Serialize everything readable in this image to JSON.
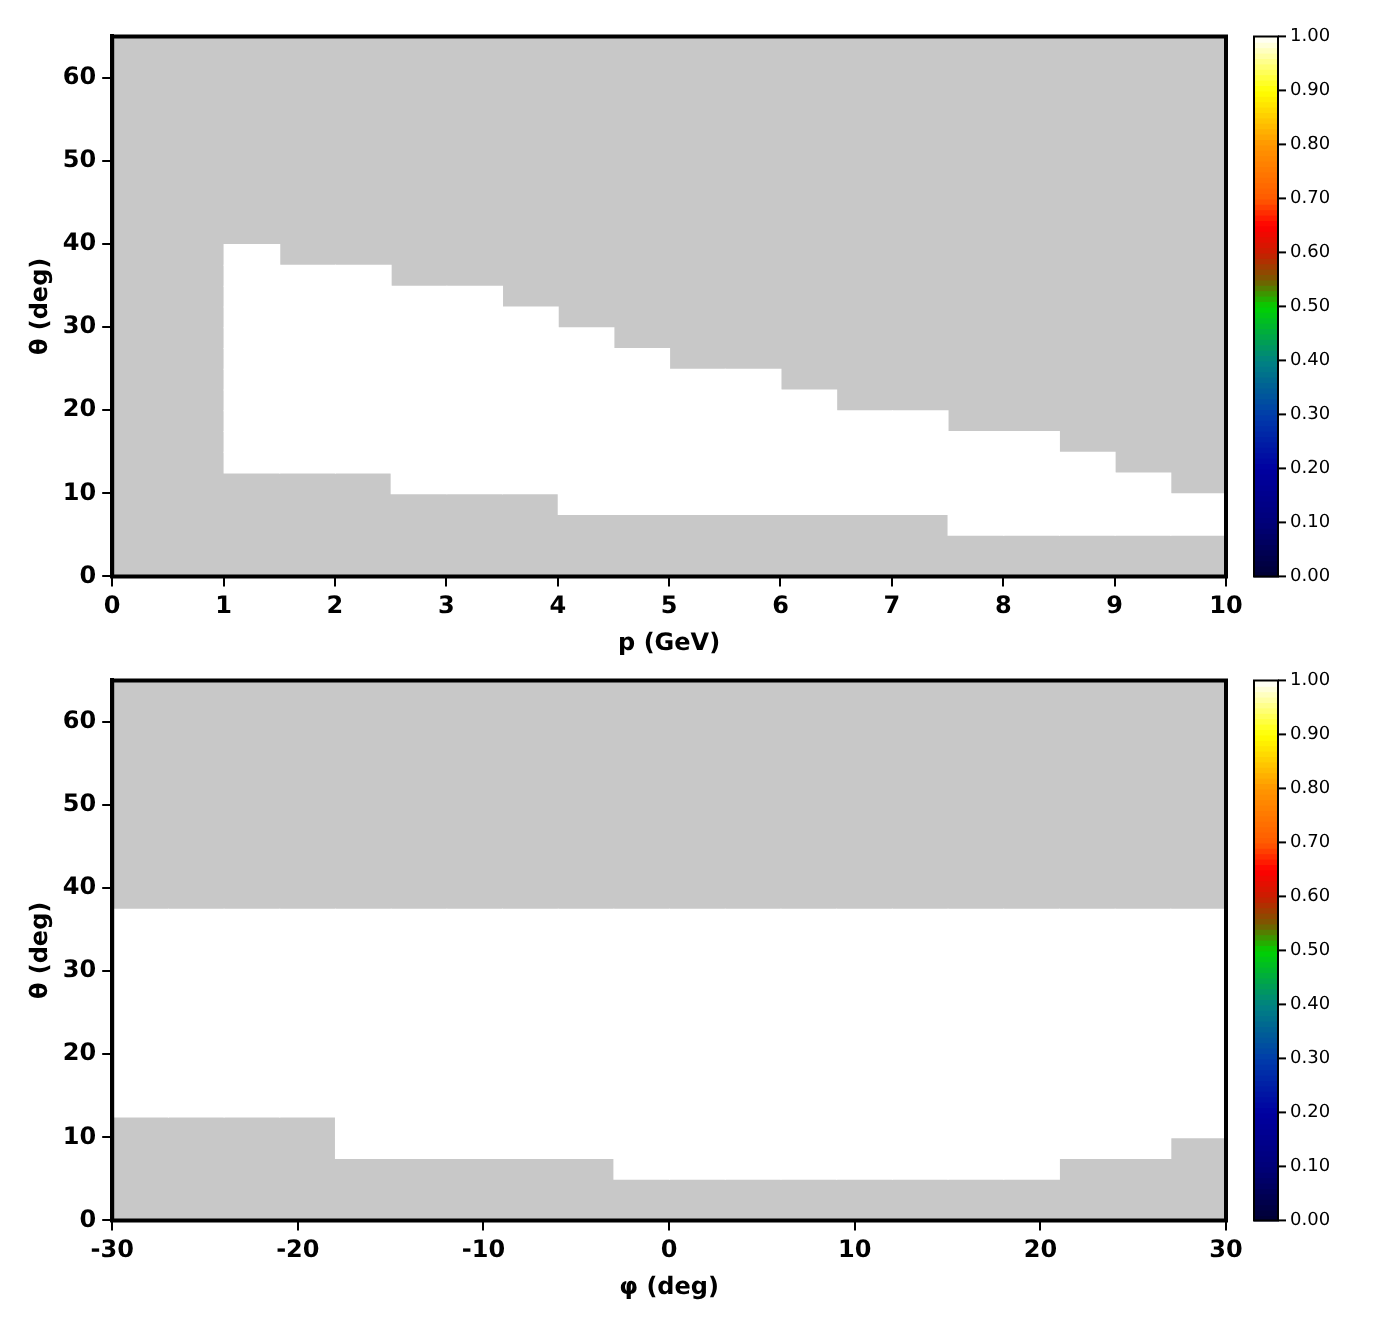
{
  "chart_data": [
    {
      "type": "scatter",
      "marker": "square",
      "xlabel": "p (GeV)",
      "ylabel": "θ (deg)",
      "xlim": [
        0,
        10
      ],
      "ylim": [
        0,
        65
      ],
      "xticks": [
        0,
        1,
        2,
        3,
        4,
        5,
        6,
        7,
        8,
        9,
        10
      ],
      "yticks": [
        0,
        10,
        20,
        30,
        40,
        50,
        60
      ],
      "clim": [
        0,
        1
      ],
      "cticks": [
        {
          "value": 0,
          "label": "0.00"
        },
        {
          "value": 0.1,
          "label": "0.10"
        },
        {
          "value": 0.2,
          "label": "0.20"
        },
        {
          "value": 0.3,
          "label": "0.30"
        },
        {
          "value": 0.4,
          "label": "0.40"
        },
        {
          "value": 0.5,
          "label": "0.50"
        },
        {
          "value": 0.6,
          "label": "0.60"
        },
        {
          "value": 0.7,
          "label": "0.70"
        },
        {
          "value": 0.8,
          "label": "0.80"
        },
        {
          "value": 0.9,
          "label": "0.90"
        },
        {
          "value": 1,
          "label": "1.00"
        }
      ],
      "x": [
        1.25,
        1.25,
        1.75,
        2.25,
        1.25,
        1.75,
        2.25,
        2.75,
        3.25,
        1.25,
        1.75,
        2.25,
        2.75,
        3.25,
        3.75,
        1.25,
        1.75,
        2.25,
        2.75,
        3.25,
        3.75,
        4.25,
        1.25,
        1.75,
        2.25,
        2.75,
        3.25,
        3.75,
        4.25,
        4.75,
        1.25,
        1.75,
        2.25,
        2.75,
        3.25,
        3.75,
        4.25,
        4.75,
        5.25,
        5.75,
        1.25,
        1.75,
        2.25,
        2.75,
        3.25,
        3.75,
        4.25,
        4.75,
        5.25,
        5.75,
        6.25,
        1.25,
        1.75,
        2.25,
        2.75,
        3.25,
        3.75,
        4.25,
        4.75,
        5.25,
        5.75,
        6.25,
        6.75,
        7.25,
        1.25,
        1.75,
        2.25,
        2.75,
        3.25,
        3.75,
        4.25,
        4.75,
        5.25,
        5.75,
        6.25,
        6.75,
        7.25,
        7.75,
        8.25,
        1.25,
        1.75,
        2.25,
        2.75,
        3.25,
        3.75,
        4.25,
        4.75,
        5.25,
        5.75,
        6.25,
        6.75,
        7.25,
        7.75,
        8.25,
        8.75,
        2.75,
        3.25,
        3.75,
        4.25,
        4.75,
        5.25,
        5.75,
        6.25,
        6.75,
        7.25,
        7.75,
        8.25,
        8.75,
        9.25,
        4.25,
        4.75,
        5.25,
        5.75,
        6.25,
        6.75,
        7.25,
        7.75,
        8.25,
        8.75,
        9.25,
        9.75,
        7.75,
        8.25,
        8.75,
        9.25,
        9.75
      ],
      "values": [
        38.75,
        36.25,
        36.25,
        36.25,
        33.75,
        33.75,
        33.75,
        33.75,
        33.75,
        31.25,
        31.25,
        31.25,
        31.25,
        31.25,
        31.25,
        28.75,
        28.75,
        28.75,
        28.75,
        28.75,
        28.75,
        28.75,
        26.25,
        26.25,
        26.25,
        26.25,
        26.25,
        26.25,
        26.25,
        26.25,
        23.75,
        23.75,
        23.75,
        23.75,
        23.75,
        23.75,
        23.75,
        23.75,
        23.75,
        23.75,
        21.25,
        21.25,
        21.25,
        21.25,
        21.25,
        21.25,
        21.25,
        21.25,
        21.25,
        21.25,
        21.25,
        18.75,
        18.75,
        18.75,
        18.75,
        18.75,
        18.75,
        18.75,
        18.75,
        18.75,
        18.75,
        18.75,
        18.75,
        18.75,
        16.25,
        16.25,
        16.25,
        16.25,
        16.25,
        16.25,
        16.25,
        16.25,
        16.25,
        16.25,
        16.25,
        16.25,
        16.25,
        16.25,
        16.25,
        13.75,
        13.75,
        13.75,
        13.75,
        13.75,
        13.75,
        13.75,
        13.75,
        13.75,
        13.75,
        13.75,
        13.75,
        13.75,
        13.75,
        13.75,
        13.75,
        11.25,
        11.25,
        11.25,
        11.25,
        11.25,
        11.25,
        11.25,
        11.25,
        11.25,
        11.25,
        11.25,
        11.25,
        11.25,
        11.25,
        8.75,
        8.75,
        8.75,
        8.75,
        8.75,
        8.75,
        8.75,
        8.75,
        8.75,
        8.75,
        8.75,
        8.75,
        6.25,
        6.25,
        6.25,
        6.25,
        6.25
      ],
      "cvalues": [
        1,
        1,
        1,
        1,
        1,
        1,
        1,
        1,
        1,
        1,
        1,
        1,
        1,
        1,
        1,
        1,
        1,
        1,
        1,
        1,
        1,
        1,
        1,
        1,
        1,
        1,
        1,
        1,
        1,
        1,
        1,
        1,
        1,
        1,
        1,
        1,
        1,
        1,
        1,
        1,
        1,
        1,
        1,
        1,
        1,
        1,
        1,
        1,
        1,
        1,
        1,
        1,
        1,
        1,
        1,
        1,
        1,
        1,
        1,
        1,
        1,
        1,
        1,
        1,
        1,
        1,
        1,
        1,
        1,
        1,
        1,
        1,
        1,
        1,
        1,
        1,
        1,
        1,
        1,
        1,
        1,
        1,
        1,
        1,
        1,
        1,
        1,
        1,
        1,
        1,
        1,
        1,
        1,
        1,
        1,
        1,
        1,
        1,
        1,
        1,
        1,
        1,
        1,
        1,
        1,
        1,
        1,
        1,
        1,
        1,
        1,
        1,
        1,
        1,
        1,
        1,
        1,
        1,
        1,
        1,
        1,
        1,
        1,
        1,
        1,
        1
      ]
    },
    {
      "type": "scatter",
      "marker": "square",
      "xlabel": "φ (deg)",
      "ylabel": "θ (deg)",
      "xlim": [
        -30,
        30
      ],
      "ylim": [
        0,
        65
      ],
      "xticks": [
        -30,
        -20,
        -10,
        0,
        10,
        20,
        30
      ],
      "yticks": [
        0,
        10,
        20,
        30,
        40,
        50,
        60
      ],
      "clim": [
        0,
        1
      ],
      "cticks": [
        {
          "value": 0,
          "label": "0.00"
        },
        {
          "value": 0.1,
          "label": "0.10"
        },
        {
          "value": 0.2,
          "label": "0.20"
        },
        {
          "value": 0.3,
          "label": "0.30"
        },
        {
          "value": 0.4,
          "label": "0.40"
        },
        {
          "value": 0.5,
          "label": "0.50"
        },
        {
          "value": 0.6,
          "label": "0.60"
        },
        {
          "value": 0.7,
          "label": "0.70"
        },
        {
          "value": 0.8,
          "label": "0.80"
        },
        {
          "value": 0.9,
          "label": "0.90"
        },
        {
          "value": 1,
          "label": "1.00"
        }
      ],
      "x": [
        -28.5,
        -25.5,
        -22.5,
        -19.5,
        -16.5,
        -13.5,
        -10.5,
        -7.5,
        -4.5,
        -1.5,
        1.5,
        4.5,
        7.5,
        10.5,
        13.5,
        16.5,
        19.5,
        22.5,
        25.5,
        28.5,
        -28.5,
        -25.5,
        -22.5,
        -19.5,
        -16.5,
        -13.5,
        -10.5,
        -7.5,
        -4.5,
        -1.5,
        1.5,
        4.5,
        7.5,
        10.5,
        13.5,
        16.5,
        19.5,
        22.5,
        25.5,
        28.5,
        -28.5,
        -25.5,
        -22.5,
        -19.5,
        -16.5,
        -13.5,
        -10.5,
        -7.5,
        -4.5,
        -1.5,
        1.5,
        4.5,
        7.5,
        10.5,
        13.5,
        16.5,
        19.5,
        22.5,
        25.5,
        28.5,
        -28.5,
        -25.5,
        -22.5,
        -19.5,
        -16.5,
        -13.5,
        -10.5,
        -7.5,
        -4.5,
        -1.5,
        1.5,
        4.5,
        7.5,
        10.5,
        13.5,
        16.5,
        19.5,
        22.5,
        25.5,
        28.5,
        -28.5,
        -25.5,
        -22.5,
        -19.5,
        -16.5,
        -13.5,
        -10.5,
        -7.5,
        -4.5,
        -1.5,
        1.5,
        4.5,
        7.5,
        10.5,
        13.5,
        16.5,
        19.5,
        22.5,
        25.5,
        28.5,
        -28.5,
        -25.5,
        -22.5,
        -19.5,
        -16.5,
        -13.5,
        -10.5,
        -7.5,
        -4.5,
        -1.5,
        1.5,
        4.5,
        7.5,
        10.5,
        13.5,
        16.5,
        19.5,
        22.5,
        25.5,
        28.5,
        -28.5,
        -25.5,
        -22.5,
        -19.5,
        -16.5,
        -13.5,
        -10.5,
        -7.5,
        -4.5,
        -1.5,
        1.5,
        4.5,
        7.5,
        10.5,
        13.5,
        16.5,
        19.5,
        22.5,
        25.5,
        28.5,
        -28.5,
        -25.5,
        -22.5,
        -19.5,
        -16.5,
        -13.5,
        -10.5,
        -7.5,
        -4.5,
        -1.5,
        1.5,
        4.5,
        7.5,
        10.5,
        13.5,
        16.5,
        19.5,
        22.5,
        25.5,
        28.5,
        -28.5,
        -25.5,
        -22.5,
        -19.5,
        -16.5,
        -13.5,
        -10.5,
        -7.5,
        -4.5,
        -1.5,
        1.5,
        4.5,
        7.5,
        10.5,
        13.5,
        16.5,
        19.5,
        22.5,
        25.5,
        28.5,
        -28.5,
        -25.5,
        -22.5,
        -19.5,
        -16.5,
        -13.5,
        -10.5,
        -7.5,
        -4.5,
        -1.5,
        1.5,
        4.5,
        7.5,
        10.5,
        13.5,
        16.5,
        19.5,
        22.5,
        25.5,
        28.5,
        -16.5,
        -13.5,
        -10.5,
        -7.5,
        -4.5,
        -1.5,
        1.5,
        4.5,
        7.5,
        10.5,
        13.5,
        16.5,
        19.5,
        22.5,
        25.5,
        28.5,
        -16.5,
        -13.5,
        -10.5,
        -7.5,
        -4.5,
        -1.5,
        1.5,
        4.5,
        7.5,
        10.5,
        13.5,
        16.5,
        19.5,
        22.5,
        25.5,
        -1.5,
        1.5,
        4.5,
        7.5,
        10.5,
        13.5,
        16.5,
        19.5
      ],
      "values": [
        36.25,
        36.25,
        36.25,
        36.25,
        36.25,
        36.25,
        36.25,
        36.25,
        36.25,
        36.25,
        36.25,
        36.25,
        36.25,
        36.25,
        36.25,
        36.25,
        36.25,
        36.25,
        36.25,
        36.25,
        33.75,
        33.75,
        33.75,
        33.75,
        33.75,
        33.75,
        33.75,
        33.75,
        33.75,
        33.75,
        33.75,
        33.75,
        33.75,
        33.75,
        33.75,
        33.75,
        33.75,
        33.75,
        33.75,
        33.75,
        31.25,
        31.25,
        31.25,
        31.25,
        31.25,
        31.25,
        31.25,
        31.25,
        31.25,
        31.25,
        31.25,
        31.25,
        31.25,
        31.25,
        31.25,
        31.25,
        31.25,
        31.25,
        31.25,
        31.25,
        28.75,
        28.75,
        28.75,
        28.75,
        28.75,
        28.75,
        28.75,
        28.75,
        28.75,
        28.75,
        28.75,
        28.75,
        28.75,
        28.75,
        28.75,
        28.75,
        28.75,
        28.75,
        28.75,
        28.75,
        26.25,
        26.25,
        26.25,
        26.25,
        26.25,
        26.25,
        26.25,
        26.25,
        26.25,
        26.25,
        26.25,
        26.25,
        26.25,
        26.25,
        26.25,
        26.25,
        26.25,
        26.25,
        26.25,
        26.25,
        23.75,
        23.75,
        23.75,
        23.75,
        23.75,
        23.75,
        23.75,
        23.75,
        23.75,
        23.75,
        23.75,
        23.75,
        23.75,
        23.75,
        23.75,
        23.75,
        23.75,
        23.75,
        23.75,
        23.75,
        21.25,
        21.25,
        21.25,
        21.25,
        21.25,
        21.25,
        21.25,
        21.25,
        21.25,
        21.25,
        21.25,
        21.25,
        21.25,
        21.25,
        21.25,
        21.25,
        21.25,
        21.25,
        21.25,
        21.25,
        18.75,
        18.75,
        18.75,
        18.75,
        18.75,
        18.75,
        18.75,
        18.75,
        18.75,
        18.75,
        18.75,
        18.75,
        18.75,
        18.75,
        18.75,
        18.75,
        18.75,
        18.75,
        18.75,
        18.75,
        16.25,
        16.25,
        16.25,
        16.25,
        16.25,
        16.25,
        16.25,
        16.25,
        16.25,
        16.25,
        16.25,
        16.25,
        16.25,
        16.25,
        16.25,
        16.25,
        16.25,
        16.25,
        16.25,
        16.25,
        13.75,
        13.75,
        13.75,
        13.75,
        13.75,
        13.75,
        13.75,
        13.75,
        13.75,
        13.75,
        13.75,
        13.75,
        13.75,
        13.75,
        13.75,
        13.75,
        13.75,
        13.75,
        13.75,
        13.75,
        11.25,
        11.25,
        11.25,
        11.25,
        11.25,
        11.25,
        11.25,
        11.25,
        11.25,
        11.25,
        11.25,
        11.25,
        11.25,
        11.25,
        11.25,
        11.25,
        8.75,
        8.75,
        8.75,
        8.75,
        8.75,
        8.75,
        8.75,
        8.75,
        8.75,
        8.75,
        8.75,
        8.75,
        8.75,
        8.75,
        8.75,
        6.25,
        6.25,
        6.25,
        6.25,
        6.25,
        6.25,
        6.25,
        6.25
      ],
      "cvalues": [
        1,
        1,
        1,
        1,
        1,
        1,
        1,
        1,
        1,
        1,
        1,
        1,
        1,
        1,
        1,
        1,
        1,
        1,
        1,
        1,
        1,
        1,
        1,
        1,
        1,
        1,
        1,
        1,
        1,
        1,
        1,
        1,
        1,
        1,
        1,
        1,
        1,
        1,
        1,
        1,
        1,
        1,
        1,
        1,
        1,
        1,
        1,
        1,
        1,
        1,
        1,
        1,
        1,
        1,
        1,
        1,
        1,
        1,
        1,
        1,
        1,
        1,
        1,
        1,
        1,
        1,
        1,
        1,
        1,
        1,
        1,
        1,
        1,
        1,
        1,
        1,
        1,
        1,
        1,
        1,
        1,
        1,
        1,
        1,
        1,
        1,
        1,
        1,
        1,
        1,
        1,
        1,
        1,
        1,
        1,
        1,
        1,
        1,
        1,
        1,
        1,
        1,
        1,
        1,
        1,
        1,
        1,
        1,
        1,
        1,
        1,
        1,
        1,
        1,
        1,
        1,
        1,
        1,
        1,
        1,
        1,
        1,
        1,
        1,
        1,
        1,
        1,
        1,
        1,
        1,
        1,
        1,
        1,
        1,
        1,
        1,
        1,
        1,
        1,
        1,
        1,
        1,
        1,
        1,
        1,
        1,
        1,
        1,
        1,
        1,
        1,
        1,
        1,
        1,
        1,
        1,
        1,
        1,
        1,
        1,
        1,
        1,
        1,
        1,
        1,
        1,
        1,
        1,
        1,
        1,
        1,
        1,
        1,
        1,
        1,
        1,
        1,
        1,
        1,
        1,
        1,
        1,
        1,
        1,
        1,
        1,
        1,
        1,
        1,
        1,
        1,
        1,
        1,
        1,
        1,
        1,
        1,
        1,
        1,
        1,
        1,
        1,
        1,
        1,
        1,
        1,
        1,
        1,
        1,
        1,
        1,
        1,
        1,
        1,
        1,
        1,
        1,
        1,
        1,
        1,
        1,
        1,
        1,
        1,
        1,
        1,
        1,
        1,
        1,
        1,
        1,
        1,
        1,
        1,
        1,
        1,
        1,
        1,
        1
      ]
    }
  ]
}
